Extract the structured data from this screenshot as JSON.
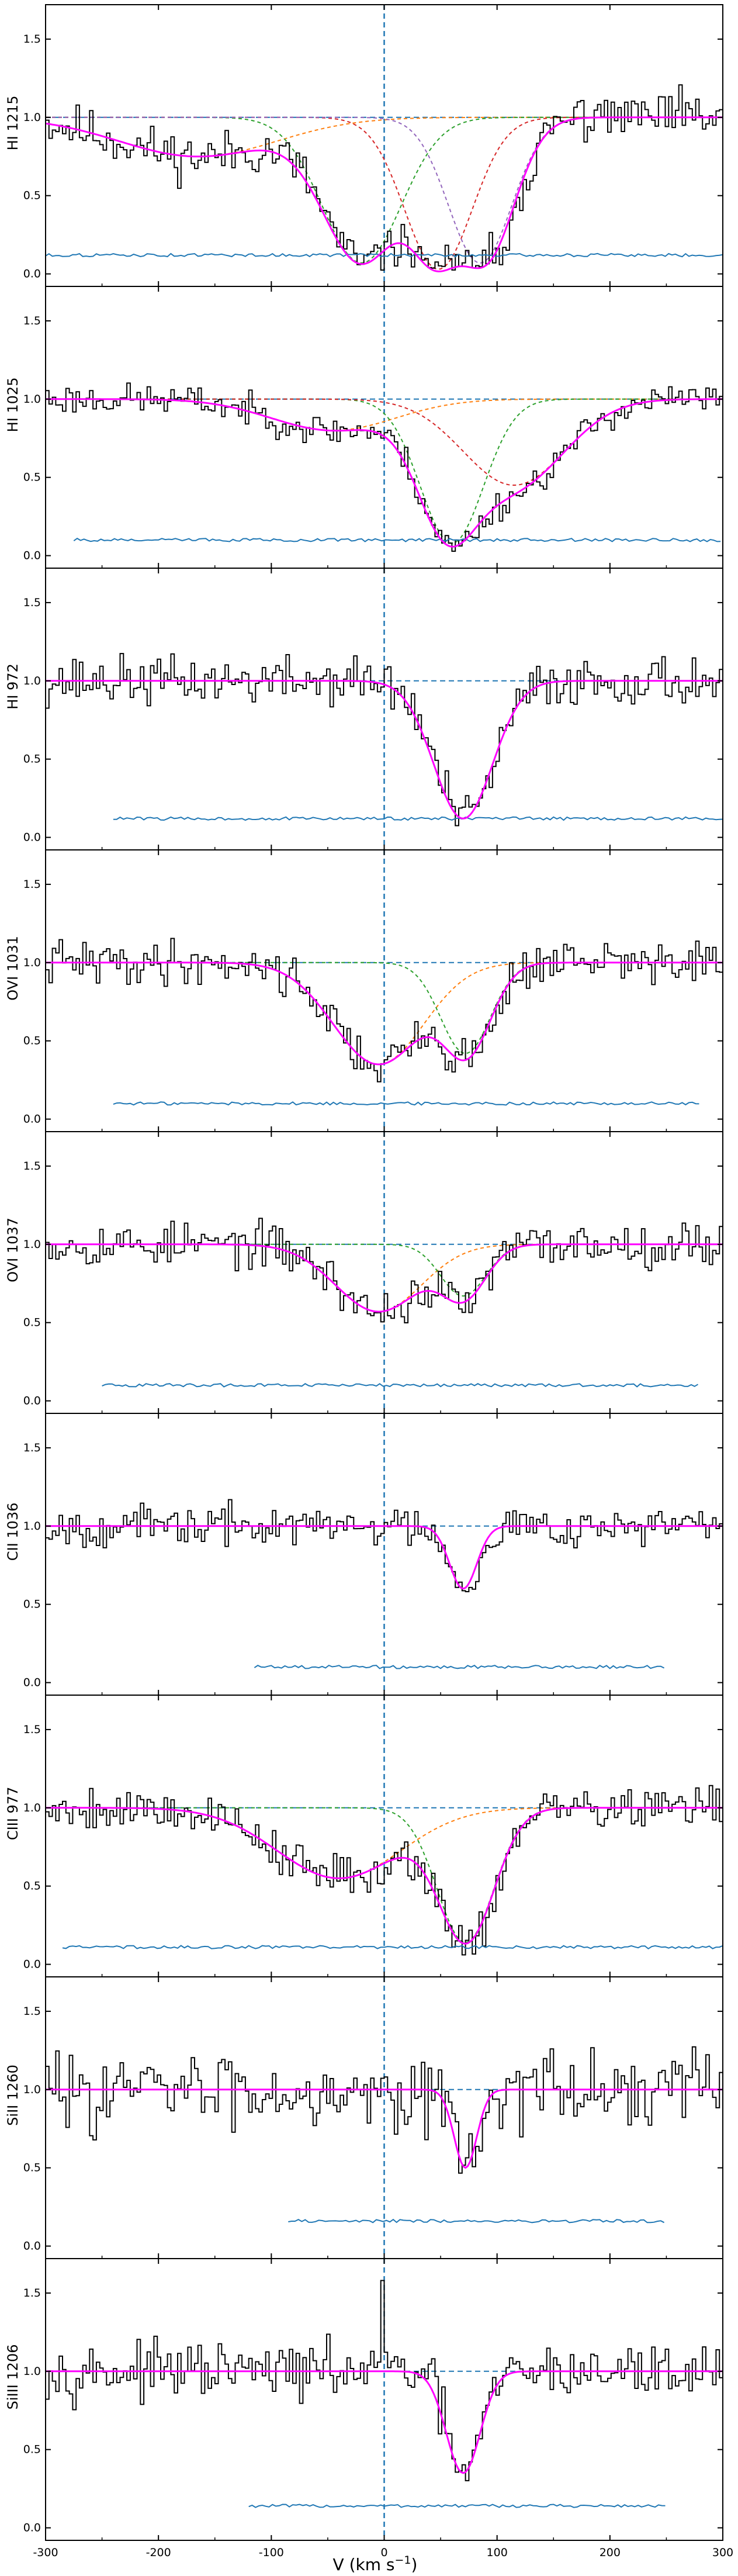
{
  "figure": {
    "x_axis_label": "V (km s",
    "x_axis_label_sup": "−1",
    "x_axis_label_close": ")"
  },
  "colors": {
    "data": "#000000",
    "model": "#ff00ff",
    "error": "#1f77b4",
    "reference": "#1f77b4",
    "comp1": "#ff7f0e",
    "comp2": "#2ca02c",
    "comp3": "#d62728",
    "comp4": "#9467bd"
  },
  "chart_data": [
    {
      "type": "line",
      "panel_label": "HI 1215",
      "xlim": [
        -300,
        300
      ],
      "ylim": [
        -0.08,
        1.72
      ],
      "xticks": [
        -300,
        -200,
        -100,
        0,
        100,
        200,
        300
      ],
      "yticks": [
        "0.0",
        "0.5",
        "1.0",
        "1.5"
      ],
      "velocity_marker": 0,
      "continuum": 1.0,
      "error_level": 0.12,
      "error_range": [
        -300,
        300
      ],
      "components": [
        {
          "center": -165,
          "depth": 0.25,
          "width": 70
        },
        {
          "center": -20,
          "depth": 0.93,
          "width": 35
        },
        {
          "center": 48,
          "depth": 0.97,
          "width": 30
        },
        {
          "center": 85,
          "depth": 0.93,
          "width": 28
        }
      ],
      "noise": 0.11,
      "seed": 11
    },
    {
      "type": "line",
      "panel_label": "HI 1025",
      "xlim": [
        -300,
        300
      ],
      "ylim": [
        -0.08,
        1.72
      ],
      "xticks": [
        -300,
        -200,
        -100,
        0,
        100,
        200,
        300
      ],
      "yticks": [
        "0.0",
        "0.5",
        "1.0",
        "1.5"
      ],
      "velocity_marker": 0,
      "continuum": 1.0,
      "error_level": 0.1,
      "error_range": [
        -275,
        300
      ],
      "components": [
        {
          "center": -45,
          "depth": 0.2,
          "width": 55
        },
        {
          "center": 60,
          "depth": 0.92,
          "width": 28
        },
        {
          "center": 115,
          "depth": 0.55,
          "width": 45
        }
      ],
      "noise": 0.07,
      "seed": 23
    },
    {
      "type": "line",
      "panel_label": "HI 972",
      "xlim": [
        -300,
        300
      ],
      "ylim": [
        -0.08,
        1.72
      ],
      "xticks": [
        -300,
        -200,
        -100,
        0,
        100,
        200,
        300
      ],
      "yticks": [
        "0.0",
        "0.5",
        "1.0",
        "1.5"
      ],
      "velocity_marker": 0,
      "continuum": 1.0,
      "error_level": 0.12,
      "error_range": [
        -240,
        300
      ],
      "components": [
        {
          "center": 70,
          "depth": 0.88,
          "width": 26
        }
      ],
      "noise": 0.11,
      "seed": 37
    },
    {
      "type": "line",
      "panel_label": "OVI 1031",
      "xlim": [
        -300,
        300
      ],
      "ylim": [
        -0.08,
        1.72
      ],
      "xticks": [
        -300,
        -200,
        -100,
        0,
        100,
        200,
        300
      ],
      "yticks": [
        "0.0",
        "0.5",
        "1.0",
        "1.5"
      ],
      "velocity_marker": 0,
      "continuum": 1.0,
      "error_level": 0.1,
      "error_range": [
        -240,
        280
      ],
      "components": [
        {
          "center": -5,
          "depth": 0.65,
          "width": 40
        },
        {
          "center": 72,
          "depth": 0.58,
          "width": 22
        }
      ],
      "noise": 0.1,
      "seed": 41
    },
    {
      "type": "line",
      "panel_label": "OVI 1037",
      "xlim": [
        -300,
        300
      ],
      "ylim": [
        -0.08,
        1.72
      ],
      "xticks": [
        -300,
        -200,
        -100,
        0,
        100,
        200,
        300
      ],
      "yticks": [
        "0.0",
        "0.5",
        "1.0",
        "1.5"
      ],
      "velocity_marker": 0,
      "continuum": 1.0,
      "error_level": 0.1,
      "error_range": [
        -250,
        280
      ],
      "components": [
        {
          "center": -5,
          "depth": 0.43,
          "width": 38
        },
        {
          "center": 70,
          "depth": 0.33,
          "width": 20
        }
      ],
      "noise": 0.1,
      "seed": 53
    },
    {
      "type": "line",
      "panel_label": "CII 1036",
      "xlim": [
        -300,
        300
      ],
      "ylim": [
        -0.08,
        1.72
      ],
      "xticks": [
        -300,
        -200,
        -100,
        0,
        100,
        200,
        300
      ],
      "yticks": [
        "0.0",
        "0.5",
        "1.0",
        "1.5"
      ],
      "velocity_marker": 0,
      "continuum": 1.0,
      "error_level": 0.1,
      "error_range": [
        -115,
        250
      ],
      "components": [
        {
          "center": 70,
          "depth": 0.4,
          "width": 12
        }
      ],
      "noise": 0.09,
      "seed": 67
    },
    {
      "type": "line",
      "panel_label": "CIII 977",
      "xlim": [
        -300,
        300
      ],
      "ylim": [
        -0.08,
        1.72
      ],
      "xticks": [
        -300,
        -200,
        -100,
        0,
        100,
        200,
        300
      ],
      "yticks": [
        "0.0",
        "0.5",
        "1.0",
        "1.5"
      ],
      "velocity_marker": 0,
      "continuum": 1.0,
      "error_level": 0.11,
      "error_range": [
        -285,
        300
      ],
      "components": [
        {
          "center": -40,
          "depth": 0.45,
          "width": 55
        },
        {
          "center": 72,
          "depth": 0.86,
          "width": 25
        }
      ],
      "noise": 0.1,
      "seed": 79
    },
    {
      "type": "line",
      "panel_label": "SiII 1260",
      "xlim": [
        -300,
        300
      ],
      "ylim": [
        -0.08,
        1.72
      ],
      "xticks": [
        -300,
        -200,
        -100,
        0,
        100,
        200,
        300
      ],
      "yticks": [
        "0.0",
        "0.5",
        "1.0",
        "1.5"
      ],
      "velocity_marker": 0,
      "continuum": 1.0,
      "error_level": 0.16,
      "error_range": [
        -85,
        250
      ],
      "components": [
        {
          "center": 72,
          "depth": 0.5,
          "width": 10
        }
      ],
      "noise": 0.17,
      "seed": 83
    },
    {
      "type": "line",
      "panel_label": "SiIII 1206",
      "xlim": [
        -300,
        300
      ],
      "ylim": [
        -0.08,
        1.72
      ],
      "xticks": [
        -300,
        -200,
        -100,
        0,
        100,
        200,
        300
      ],
      "yticks": [
        "0.0",
        "0.5",
        "1.0",
        "1.5"
      ],
      "velocity_marker": 0,
      "continuum": 1.0,
      "error_level": 0.14,
      "error_range": [
        -120,
        250
      ],
      "components": [
        {
          "center": 70,
          "depth": 0.65,
          "width": 15
        }
      ],
      "spike": {
        "x": -2,
        "y": 1.58
      },
      "noise": 0.12,
      "seed": 97
    }
  ]
}
